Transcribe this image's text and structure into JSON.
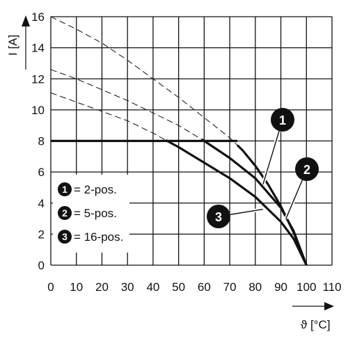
{
  "chart_data": {
    "type": "line",
    "xlabel": "ϑ [°C]",
    "ylabel": "I [A]",
    "xlim": [
      0,
      110
    ],
    "ylim": [
      0,
      16
    ],
    "x_ticks": [
      0,
      10,
      20,
      30,
      40,
      50,
      60,
      70,
      80,
      90,
      100,
      110
    ],
    "y_ticks": [
      0,
      2,
      4,
      6,
      8,
      10,
      12,
      14,
      16
    ],
    "grid": true,
    "legend": {
      "position": "bottom-left",
      "entries": [
        {
          "marker": "1",
          "label": "= 2-pos."
        },
        {
          "marker": "2",
          "label": "= 5-pos."
        },
        {
          "marker": "3",
          "label": "= 16-pos."
        }
      ]
    },
    "limit_line": {
      "x": [
        0,
        73
      ],
      "y": [
        8,
        8
      ]
    },
    "series": [
      {
        "marker": "1",
        "x": [
          0,
          10,
          20,
          30,
          40,
          50,
          60,
          70,
          75,
          80,
          85,
          90,
          95,
          100
        ],
        "y": [
          16,
          15.2,
          14.3,
          13.2,
          12.0,
          10.8,
          9.5,
          8.2,
          7.4,
          6.4,
          5.2,
          3.8,
          2.1,
          0
        ],
        "solid_from_x": 73
      },
      {
        "marker": "2",
        "x": [
          0,
          10,
          20,
          30,
          40,
          50,
          60,
          70,
          80,
          90,
          95,
          100
        ],
        "y": [
          12.6,
          12.0,
          11.3,
          10.6,
          9.8,
          9.0,
          8.0,
          6.9,
          5.6,
          3.7,
          2.2,
          0
        ],
        "solid_from_x": 59
      },
      {
        "marker": "3",
        "x": [
          0,
          10,
          20,
          30,
          40,
          50,
          60,
          70,
          80,
          90,
          95,
          100
        ],
        "y": [
          11.1,
          10.5,
          9.9,
          9.3,
          8.5,
          7.6,
          6.6,
          5.6,
          4.4,
          2.8,
          1.7,
          0
        ],
        "solid_from_x": 45
      }
    ]
  }
}
